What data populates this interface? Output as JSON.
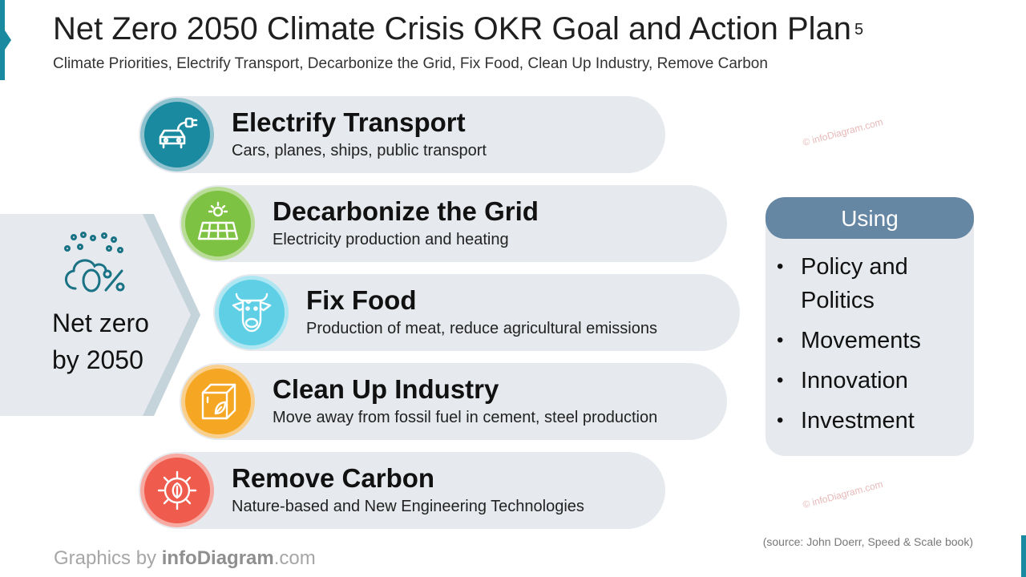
{
  "header": {
    "title": "Net Zero 2050 Climate Crisis OKR Goal and Action Plan",
    "slide_number": "5",
    "subtitle": "Climate Priorities, Electrify Transport, Decarbonize the Grid, Fix Food, Clean Up Industry, Remove Carbon"
  },
  "goal": {
    "line1": "Net zero",
    "line2": "by 2050",
    "icon": "cloud-zero-percent-icon"
  },
  "priorities": [
    {
      "title": "Electrify Transport",
      "desc": "Cars, planes, ships, public transport",
      "icon": "electric-car-icon",
      "color": "#1a8aa0"
    },
    {
      "title": "Decarbonize the Grid",
      "desc": "Electricity production and heating",
      "icon": "solar-panel-icon",
      "color": "#7dc242"
    },
    {
      "title": "Fix Food",
      "desc": "Production of meat, reduce agricultural emissions",
      "icon": "cow-icon",
      "color": "#5fcfe6"
    },
    {
      "title": "Clean Up Industry",
      "desc": "Move away from fossil fuel in cement, steel production",
      "icon": "box-leaf-icon",
      "color": "#f5a623"
    },
    {
      "title": "Remove Carbon",
      "desc": "Nature-based and New Engineering Technologies",
      "icon": "gear-leaf-icon",
      "color": "#ef5b4c"
    }
  ],
  "using": {
    "title": "Using",
    "items": [
      "Policy and Politics",
      "Movements",
      "Innovation",
      "Investment"
    ]
  },
  "watermark": "© infoDiagram.com",
  "source": "(source: John Doerr, Speed & Scale book)",
  "footer": {
    "prefix": "Graphics by ",
    "brand": "infoDiagram",
    "suffix": ".com"
  },
  "colors": {
    "accent": "#1a8aa0",
    "using_header": "#6687a4",
    "pill_bg": "#e6e9ed"
  }
}
